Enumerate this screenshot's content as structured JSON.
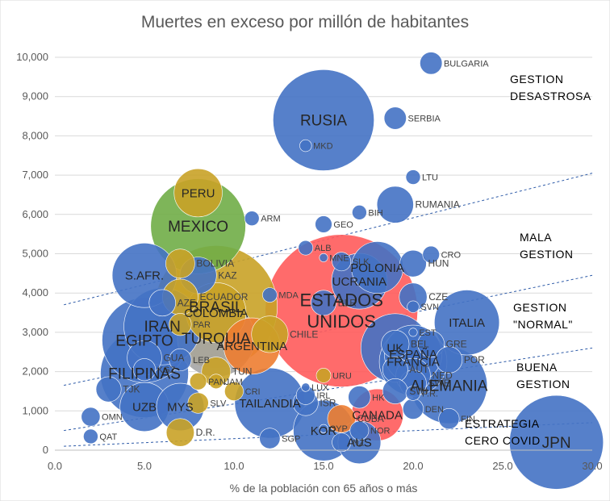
{
  "chart_data": {
    "type": "scatter",
    "subtype": "bubble",
    "title": "Muertes en exceso por millón de habitantes",
    "xlabel": "% de la población con 65 años o más",
    "ylabel": "",
    "xlim": [
      0,
      30
    ],
    "ylim": [
      0,
      10000
    ],
    "x_ticks": [
      "0.0",
      "5.0",
      "10.0",
      "15.0",
      "20.0",
      "25.0",
      "30.0"
    ],
    "y_ticks": [
      "0",
      "1,000",
      "2,000",
      "3,000",
      "4,000",
      "5,000",
      "6,000",
      "7,000",
      "8,000",
      "9,000",
      "10,000"
    ],
    "grid": "horizontal",
    "colors": {
      "blue": "#4472C4",
      "gold": "#C9A227",
      "green": "#70AD47",
      "orange": "#ED7D31",
      "red": "#FF5B5B",
      "gray": "#A5A5A5",
      "line": "#2E5BA8"
    },
    "trend_lines": [
      {
        "name": "mala-gestion-boundary",
        "from": [
          0.5,
          3700
        ],
        "to": [
          30,
          7050
        ]
      },
      {
        "name": "gestion-normal-boundary",
        "from": [
          0.5,
          1650
        ],
        "to": [
          30,
          4450
        ]
      },
      {
        "name": "buena-gestion-boundary",
        "from": [
          0.5,
          500
        ],
        "to": [
          30,
          2600
        ]
      },
      {
        "name": "cero-covid-boundary",
        "from": [
          0.5,
          100
        ],
        "to": [
          30,
          700
        ]
      }
    ],
    "zones": [
      {
        "lines": [
          "GESTION",
          "DESASTROSA"
        ]
      },
      {
        "lines": [
          "MALA",
          "GESTION"
        ]
      },
      {
        "lines": [
          "GESTION",
          "\"NORMAL\""
        ]
      },
      {
        "lines": [
          "BUENA",
          "GESTION"
        ]
      },
      {
        "lines": [
          "ESTRATEGIA",
          "CERO COVID"
        ]
      }
    ],
    "points": [
      {
        "label": "BULGARIA",
        "x": 21,
        "y": 9850,
        "size": 7,
        "color": "blue"
      },
      {
        "label": "RUSIA",
        "x": 15,
        "y": 8400,
        "size": 145,
        "color": "blue"
      },
      {
        "label": "SERBIA",
        "x": 19,
        "y": 8450,
        "size": 7,
        "color": "blue"
      },
      {
        "label": "MKD",
        "x": 14,
        "y": 7750,
        "size": 2,
        "color": "blue"
      },
      {
        "label": "LTU",
        "x": 20,
        "y": 6950,
        "size": 3,
        "color": "blue"
      },
      {
        "label": "PERU",
        "x": 8,
        "y": 6550,
        "size": 33,
        "color": "gold"
      },
      {
        "label": "RUMANIA",
        "x": 19,
        "y": 6250,
        "size": 19,
        "color": "blue"
      },
      {
        "label": "BIH",
        "x": 17,
        "y": 6050,
        "size": 3,
        "color": "blue"
      },
      {
        "label": "ARM",
        "x": 11,
        "y": 5900,
        "size": 3,
        "color": "blue"
      },
      {
        "label": "MEXICO",
        "x": 8,
        "y": 5700,
        "size": 128,
        "color": "green"
      },
      {
        "label": "GEO",
        "x": 15,
        "y": 5750,
        "size": 4,
        "color": "blue"
      },
      {
        "label": "ALB",
        "x": 14,
        "y": 5150,
        "size": 3,
        "color": "blue"
      },
      {
        "label": "MNE",
        "x": 15,
        "y": 4900,
        "size": 1,
        "color": "blue"
      },
      {
        "label": "CRO",
        "x": 21,
        "y": 4980,
        "size": 4,
        "color": "blue"
      },
      {
        "label": "SLK",
        "x": 16,
        "y": 4800,
        "size": 5,
        "color": "blue"
      },
      {
        "label": "POLONIA",
        "x": 18,
        "y": 4650,
        "size": 38,
        "color": "blue"
      },
      {
        "label": "HUN",
        "x": 20,
        "y": 4750,
        "size": 10,
        "color": "blue"
      },
      {
        "label": "BOLIVIA",
        "x": 7,
        "y": 4750,
        "size": 12,
        "color": "gold"
      },
      {
        "label": "S.AFR.",
        "x": 5,
        "y": 4450,
        "size": 59,
        "color": "blue"
      },
      {
        "label": "KAZ",
        "x": 8,
        "y": 4450,
        "size": 19,
        "color": "blue"
      },
      {
        "label": "UCRANIA",
        "x": 17,
        "y": 4300,
        "size": 44,
        "color": "blue"
      },
      {
        "label": "BLR",
        "x": 15,
        "y": 3750,
        "size": 9,
        "color": "blue"
      },
      {
        "label": "MDA",
        "x": 12,
        "y": 3950,
        "size": 3,
        "color": "blue"
      },
      {
        "label": "ECUADOR",
        "x": 7,
        "y": 3900,
        "size": 18,
        "color": "gold"
      },
      {
        "label": "AZE",
        "x": 6,
        "y": 3750,
        "size": 10,
        "color": "blue"
      },
      {
        "label": "BRASIL",
        "x": 9,
        "y": 3650,
        "size": 213,
        "color": "gold"
      },
      {
        "label": "CZE",
        "x": 20,
        "y": 3900,
        "size": 11,
        "color": "blue"
      },
      {
        "label": "SVN",
        "x": 20,
        "y": 3650,
        "size": 2,
        "color": "blue"
      },
      {
        "label": "ESTADOS UNIDOS",
        "x": 16,
        "y": 3550,
        "size": 330,
        "color": "red"
      },
      {
        "label": "COLOMBIA",
        "x": 9,
        "y": 3500,
        "size": 51,
        "color": "gold"
      },
      {
        "label": "IRAN",
        "x": 6,
        "y": 3150,
        "size": 84,
        "color": "blue"
      },
      {
        "label": "PAR",
        "x": 7,
        "y": 3200,
        "size": 7,
        "color": "gold"
      },
      {
        "label": "ITALIA",
        "x": 23,
        "y": 3250,
        "size": 60,
        "color": "blue"
      },
      {
        "label": "EST",
        "x": 20,
        "y": 3000,
        "size": 1,
        "color": "blue"
      },
      {
        "label": "CHILE",
        "x": 12,
        "y": 2950,
        "size": 19,
        "color": "gold"
      },
      {
        "label": "TURQUIA",
        "x": 9,
        "y": 2850,
        "size": 85,
        "color": "gray"
      },
      {
        "label": "EGIPTO",
        "x": 5,
        "y": 2800,
        "size": 102,
        "color": "blue"
      },
      {
        "label": "GRE",
        "x": 21,
        "y": 2700,
        "size": 10,
        "color": "blue"
      },
      {
        "label": "ARGENTINA",
        "x": 11,
        "y": 2650,
        "size": 45,
        "color": "orange"
      },
      {
        "label": "UK",
        "x": 19,
        "y": 2600,
        "size": 67,
        "color": "blue"
      },
      {
        "label": "BEL",
        "x": 19,
        "y": 2700,
        "size": 11,
        "color": "blue"
      },
      {
        "label": "GUA",
        "x": 5,
        "y": 2350,
        "size": 17,
        "color": "blue"
      },
      {
        "label": "ESPAÑA",
        "x": 20,
        "y": 2450,
        "size": 47,
        "color": "blue"
      },
      {
        "label": "FRANCIA",
        "x": 20,
        "y": 2250,
        "size": 65,
        "color": "blue"
      },
      {
        "label": "POR",
        "x": 22,
        "y": 2300,
        "size": 10,
        "color": "blue"
      },
      {
        "label": "LEB",
        "x": 7,
        "y": 2300,
        "size": 7,
        "color": "blue"
      },
      {
        "label": "AUT",
        "x": 19,
        "y": 2050,
        "size": 9,
        "color": "blue"
      },
      {
        "label": "KGZ",
        "x": 5,
        "y": 2050,
        "size": 7,
        "color": "blue"
      },
      {
        "label": "TUN",
        "x": 9,
        "y": 2000,
        "size": 12,
        "color": "gold"
      },
      {
        "label": "FILIPINAS",
        "x": 5,
        "y": 1950,
        "size": 110,
        "color": "blue"
      },
      {
        "label": "NED",
        "x": 20,
        "y": 1900,
        "size": 17,
        "color": "blue"
      },
      {
        "label": "URU",
        "x": 15,
        "y": 1900,
        "size": 3,
        "color": "gold"
      },
      {
        "label": "PAN",
        "x": 8,
        "y": 1750,
        "size": 4,
        "color": "gold"
      },
      {
        "label": "JAM",
        "x": 9,
        "y": 1750,
        "size": 3,
        "color": "gold"
      },
      {
        "label": "SWE",
        "x": 20,
        "y": 1700,
        "size": 10,
        "color": "blue"
      },
      {
        "label": "ALEMANIA",
        "x": 22,
        "y": 1650,
        "size": 83,
        "color": "blue"
      },
      {
        "label": "LUX",
        "x": 14,
        "y": 1600,
        "size": 1,
        "color": "blue"
      },
      {
        "label": "TJK",
        "x": 3,
        "y": 1550,
        "size": 9,
        "color": "blue"
      },
      {
        "label": "SWI",
        "x": 19,
        "y": 1500,
        "size": 9,
        "color": "blue"
      },
      {
        "label": "CRI",
        "x": 10,
        "y": 1500,
        "size": 5,
        "color": "gold"
      },
      {
        "label": "P.R.",
        "x": 20,
        "y": 1450,
        "size": 3,
        "color": "blue"
      },
      {
        "label": "IRL",
        "x": 14,
        "y": 1400,
        "size": 5,
        "color": "blue"
      },
      {
        "label": "HK",
        "x": 17,
        "y": 1350,
        "size": 7,
        "color": "blue"
      },
      {
        "label": "SLV",
        "x": 8,
        "y": 1200,
        "size": 6,
        "color": "gold"
      },
      {
        "label": "ISR",
        "x": 14,
        "y": 1200,
        "size": 9,
        "color": "blue"
      },
      {
        "label": "TAILANDIA",
        "x": 12,
        "y": 1200,
        "size": 70,
        "color": "blue"
      },
      {
        "label": "UZB",
        "x": 5,
        "y": 1100,
        "size": 34,
        "color": "blue"
      },
      {
        "label": "DEN",
        "x": 20,
        "y": 1050,
        "size": 6,
        "color": "blue"
      },
      {
        "label": "MYS",
        "x": 7,
        "y": 1100,
        "size": 32,
        "color": "blue"
      },
      {
        "label": "CANADA",
        "x": 18,
        "y": 900,
        "size": 38,
        "color": "red"
      },
      {
        "label": "CUBA",
        "x": 16,
        "y": 800,
        "size": 11,
        "color": "orange"
      },
      {
        "label": "OMN",
        "x": 2,
        "y": 850,
        "size": 5,
        "color": "blue"
      },
      {
        "label": "FIN",
        "x": 22,
        "y": 800,
        "size": 6,
        "color": "blue"
      },
      {
        "label": "CYP",
        "x": 15,
        "y": 550,
        "size": 1,
        "color": "blue"
      },
      {
        "label": "NOR",
        "x": 17,
        "y": 500,
        "size": 5,
        "color": "blue"
      },
      {
        "label": "D.R.",
        "x": 7,
        "y": 450,
        "size": 11,
        "color": "gold"
      },
      {
        "label": "QAT",
        "x": 2,
        "y": 350,
        "size": 3,
        "color": "blue"
      },
      {
        "label": "SGP",
        "x": 12,
        "y": 300,
        "size": 6,
        "color": "blue"
      },
      {
        "label": "KOR",
        "x": 15,
        "y": 500,
        "size": 52,
        "color": "blue"
      },
      {
        "label": "AUS",
        "x": 17,
        "y": 200,
        "size": 26,
        "color": "blue"
      },
      {
        "label": "NZ",
        "x": 16,
        "y": 200,
        "size": 5,
        "color": "blue"
      },
      {
        "label": "JPN",
        "x": 28,
        "y": 200,
        "size": 125,
        "color": "blue"
      }
    ]
  }
}
